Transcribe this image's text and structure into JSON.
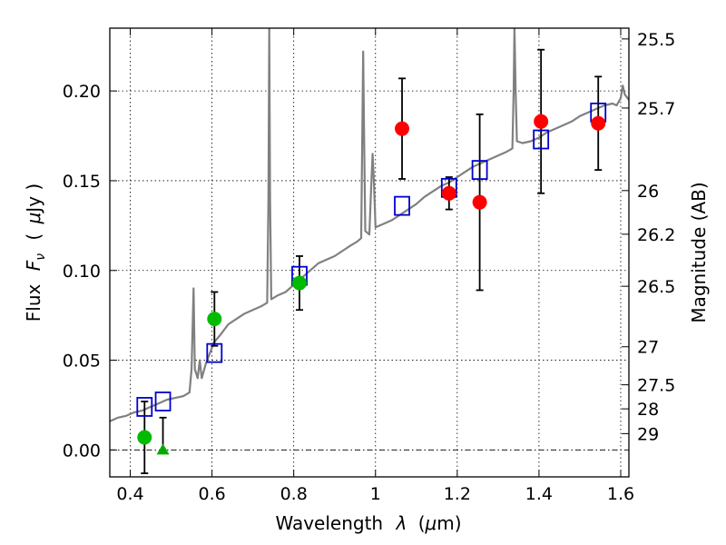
{
  "chart_data": {
    "type": "scatter",
    "xlabel_prefix": "Wavelength",
    "xlabel_symbol": "λ",
    "xlabel_unit_open": "(",
    "xlabel_unit_mu": "μ",
    "xlabel_unit_rest": "m)",
    "ylabel_prefix": "Flux",
    "ylabel_symbol": "F",
    "ylabel_subscript": "ν",
    "ylabel_unit_open": "(",
    "ylabel_unit_mu": "μ",
    "ylabel_unit_rest": "Jy )",
    "y2label": "Magnitude (AB)",
    "xlim": [
      0.35,
      1.62
    ],
    "ylim": [
      -0.015,
      0.235
    ],
    "xticks": [
      0.4,
      0.6,
      0.8,
      1.0,
      1.2,
      1.4,
      1.6
    ],
    "xtick_labels": [
      "0.4",
      "0.6",
      "0.8",
      "1",
      "1.2",
      "1.4",
      "1.6"
    ],
    "yticks": [
      0.0,
      0.05,
      0.1,
      0.15,
      0.2
    ],
    "ytick_labels": [
      "0.00",
      "0.05",
      "0.10",
      "0.15",
      "0.20"
    ],
    "y2ticks": [
      {
        "label": "25.5",
        "flux": 0.229
      },
      {
        "label": "25.7",
        "flux": 0.1905
      },
      {
        "label": "26",
        "flux": 0.1445
      },
      {
        "label": "26.2",
        "flux": 0.1202
      },
      {
        "label": "26.5",
        "flux": 0.0912
      },
      {
        "label": "27",
        "flux": 0.0575
      },
      {
        "label": "27.5",
        "flux": 0.0363
      },
      {
        "label": "28",
        "flux": 0.0229
      },
      {
        "label": "29",
        "flux": 0.0091
      }
    ],
    "grid": true,
    "zero_line": true,
    "series": [
      {
        "name": "model_spectrum",
        "kind": "line",
        "color": "#808080",
        "points": [
          [
            0.35,
            0.016
          ],
          [
            0.37,
            0.018
          ],
          [
            0.39,
            0.019
          ],
          [
            0.41,
            0.021
          ],
          [
            0.43,
            0.022
          ],
          [
            0.45,
            0.024
          ],
          [
            0.47,
            0.026
          ],
          [
            0.49,
            0.028
          ],
          [
            0.51,
            0.029
          ],
          [
            0.53,
            0.03
          ],
          [
            0.545,
            0.032
          ],
          [
            0.55,
            0.045
          ],
          [
            0.555,
            0.09
          ],
          [
            0.558,
            0.045
          ],
          [
            0.565,
            0.04
          ],
          [
            0.57,
            0.05
          ],
          [
            0.575,
            0.04
          ],
          [
            0.585,
            0.048
          ],
          [
            0.595,
            0.054
          ],
          [
            0.605,
            0.06
          ],
          [
            0.62,
            0.064
          ],
          [
            0.64,
            0.07
          ],
          [
            0.66,
            0.073
          ],
          [
            0.68,
            0.076
          ],
          [
            0.7,
            0.078
          ],
          [
            0.72,
            0.08
          ],
          [
            0.735,
            0.082
          ],
          [
            0.738,
            0.14
          ],
          [
            0.74,
            0.235
          ],
          [
            0.742,
            0.14
          ],
          [
            0.745,
            0.084
          ],
          [
            0.76,
            0.086
          ],
          [
            0.78,
            0.088
          ],
          [
            0.8,
            0.092
          ],
          [
            0.82,
            0.096
          ],
          [
            0.84,
            0.1
          ],
          [
            0.86,
            0.104
          ],
          [
            0.88,
            0.106
          ],
          [
            0.9,
            0.108
          ],
          [
            0.92,
            0.111
          ],
          [
            0.94,
            0.114
          ],
          [
            0.955,
            0.116
          ],
          [
            0.965,
            0.118
          ],
          [
            0.968,
            0.18
          ],
          [
            0.97,
            0.222
          ],
          [
            0.972,
            0.18
          ],
          [
            0.975,
            0.122
          ],
          [
            0.985,
            0.12
          ],
          [
            0.99,
            0.15
          ],
          [
            0.993,
            0.165
          ],
          [
            0.996,
            0.15
          ],
          [
            1.0,
            0.124
          ],
          [
            1.02,
            0.126
          ],
          [
            1.04,
            0.128
          ],
          [
            1.06,
            0.131
          ],
          [
            1.08,
            0.134
          ],
          [
            1.1,
            0.137
          ],
          [
            1.12,
            0.141
          ],
          [
            1.14,
            0.144
          ],
          [
            1.16,
            0.147
          ],
          [
            1.18,
            0.149
          ],
          [
            1.2,
            0.152
          ],
          [
            1.22,
            0.155
          ],
          [
            1.24,
            0.158
          ],
          [
            1.26,
            0.16
          ],
          [
            1.28,
            0.162
          ],
          [
            1.3,
            0.164
          ],
          [
            1.32,
            0.166
          ],
          [
            1.335,
            0.168
          ],
          [
            1.338,
            0.2
          ],
          [
            1.34,
            0.235
          ],
          [
            1.343,
            0.2
          ],
          [
            1.346,
            0.172
          ],
          [
            1.36,
            0.171
          ],
          [
            1.38,
            0.172
          ],
          [
            1.4,
            0.174
          ],
          [
            1.42,
            0.177
          ],
          [
            1.44,
            0.179
          ],
          [
            1.46,
            0.181
          ],
          [
            1.48,
            0.183
          ],
          [
            1.5,
            0.186
          ],
          [
            1.52,
            0.188
          ],
          [
            1.54,
            0.19
          ],
          [
            1.56,
            0.192
          ],
          [
            1.58,
            0.193
          ],
          [
            1.59,
            0.192
          ],
          [
            1.6,
            0.196
          ],
          [
            1.605,
            0.203
          ],
          [
            1.61,
            0.198
          ],
          [
            1.62,
            0.195
          ]
        ]
      },
      {
        "name": "model_photometry",
        "kind": "open-square",
        "color": "#0000cc",
        "points": [
          [
            0.435,
            0.024
          ],
          [
            0.48,
            0.027
          ],
          [
            0.606,
            0.054
          ],
          [
            0.814,
            0.097
          ],
          [
            1.065,
            0.136
          ],
          [
            1.18,
            0.146
          ],
          [
            1.255,
            0.156
          ],
          [
            1.405,
            0.173
          ],
          [
            1.545,
            0.188
          ]
        ]
      },
      {
        "name": "observed_green",
        "kind": "filled-circle",
        "color": "#00bb00",
        "points": [
          {
            "x": 0.435,
            "y": 0.007,
            "err": 0.02
          },
          {
            "x": 0.606,
            "y": 0.073,
            "err": 0.015
          },
          {
            "x": 0.814,
            "y": 0.093,
            "err": 0.015
          }
        ]
      },
      {
        "name": "observed_green_upper_limit",
        "kind": "triangle",
        "color": "#00aa00",
        "points": [
          {
            "x": 0.48,
            "y": 0.0,
            "err_up": 0.018
          }
        ]
      },
      {
        "name": "observed_red",
        "kind": "filled-circle",
        "color": "#ff0000",
        "points": [
          {
            "x": 1.065,
            "y": 0.179,
            "err": 0.028
          },
          {
            "x": 1.18,
            "y": 0.143,
            "err": 0.009
          },
          {
            "x": 1.255,
            "y": 0.138,
            "err": 0.049
          },
          {
            "x": 1.405,
            "y": 0.183,
            "err": 0.04
          },
          {
            "x": 1.545,
            "y": 0.182,
            "err": 0.026
          }
        ]
      }
    ]
  }
}
